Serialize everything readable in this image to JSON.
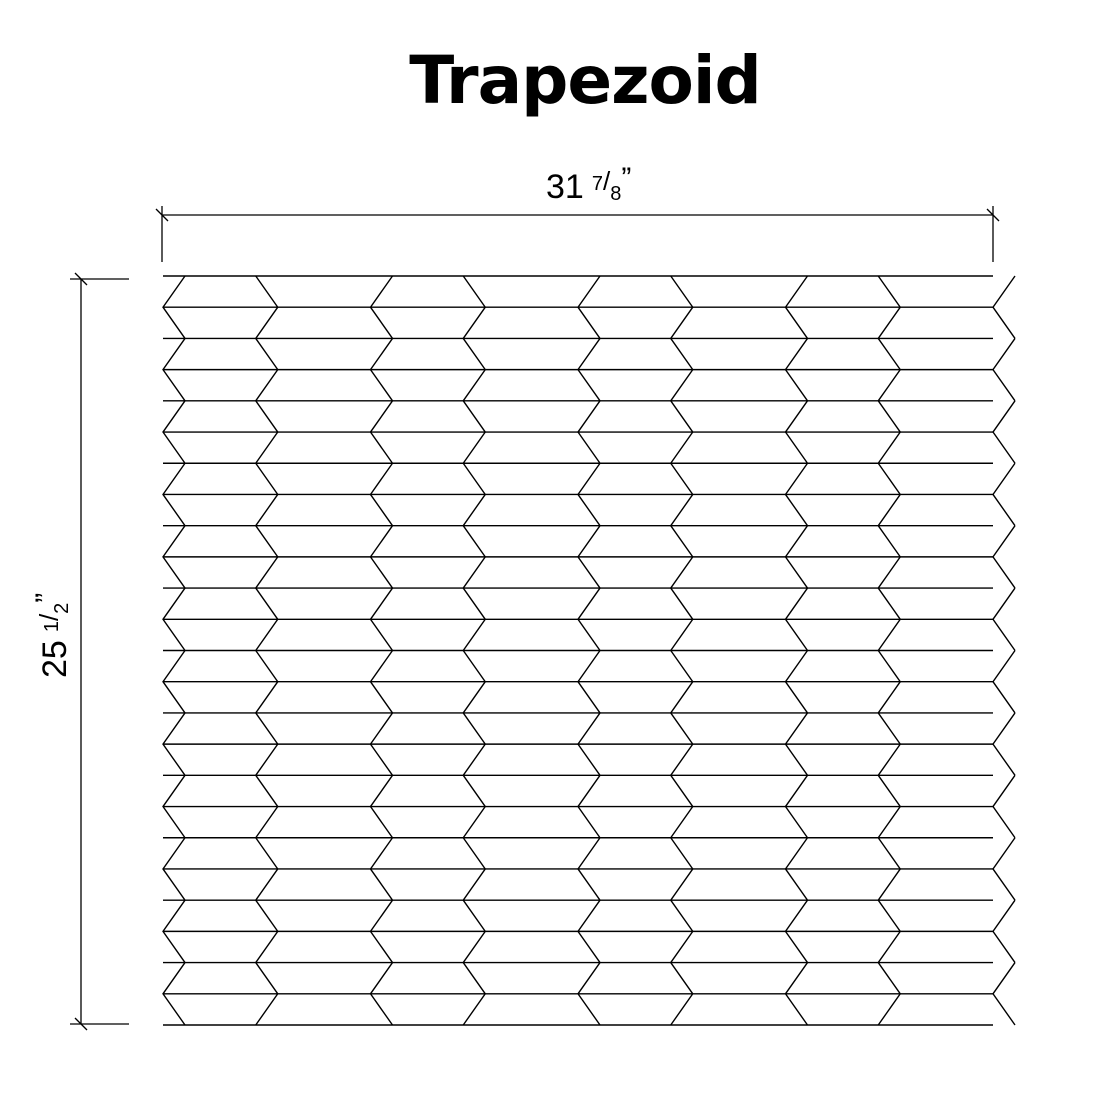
{
  "title": "Trapezoid",
  "dimensions": {
    "width": {
      "whole": "31",
      "num": "7",
      "den": "8",
      "mark": "”"
    },
    "height": {
      "whole": "25",
      "num": "1",
      "den": "2",
      "mark": "”"
    }
  },
  "pattern": {
    "shape": "trapezoid",
    "rows": 24,
    "columns": 8,
    "stroke_color": "#000000",
    "background_color": "#ffffff"
  }
}
